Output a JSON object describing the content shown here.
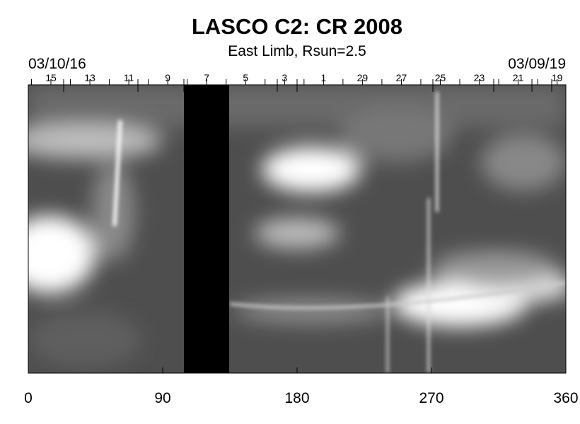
{
  "chart_data": {
    "type": "image",
    "title": "LASCO C2: CR 2008",
    "subtitle": "East Limb, Rsun=2.5",
    "start_label": "03/10/16",
    "end_label": "03/09/19",
    "top_labels": [
      "15",
      "13",
      "11",
      "9",
      "7",
      "5",
      "3",
      "1",
      "29",
      "27",
      "25",
      "23",
      "21",
      "19"
    ],
    "xlim": [
      0,
      360
    ],
    "xticks": [
      0,
      90,
      180,
      270,
      360
    ]
  }
}
